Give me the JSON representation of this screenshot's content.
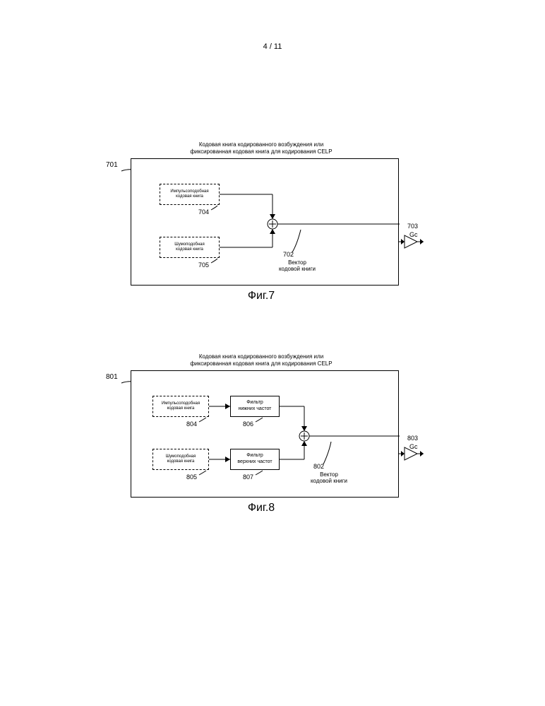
{
  "page_number": "4 / 11",
  "fig7": {
    "title_line1": "Кодовая книга кодированного возбуждения или",
    "title_line2": "фиксированная кодовая книга для кодирования CELP",
    "ref_main": "701",
    "block_pulse": "Импульсоподобная\nкодовая книга",
    "ref_pulse": "704",
    "block_noise": "Шумоподобная\nкодовая книга",
    "ref_noise": "705",
    "vector_label": "Вектор\nкодовой книги",
    "ref_vector": "702",
    "ref_gain": "703",
    "gain_symbol": "Gc",
    "caption": "Фиг.7"
  },
  "fig8": {
    "title_line1": "Кодовая книга кодированного возбуждения или",
    "title_line2": "фиксированная кодовая книга для кодирования CELP",
    "ref_main": "801",
    "block_pulse": "Импульсоподобная\nкодовая книга",
    "ref_pulse": "804",
    "block_noise": "Шумоподобная\nкодовая книга",
    "ref_noise": "805",
    "block_lpf": "Фильтр\nнижних частот",
    "ref_lpf": "806",
    "block_hpf": "Фильтр\nверхних частот",
    "ref_hpf": "807",
    "vector_label": "Вектор\nкодовой книги",
    "ref_vector": "802",
    "ref_gain": "803",
    "gain_symbol": "Gc",
    "caption": "Фиг.8"
  },
  "style": {
    "stroke": "#000000",
    "fill": "#ffffff",
    "dash": "3,3"
  }
}
